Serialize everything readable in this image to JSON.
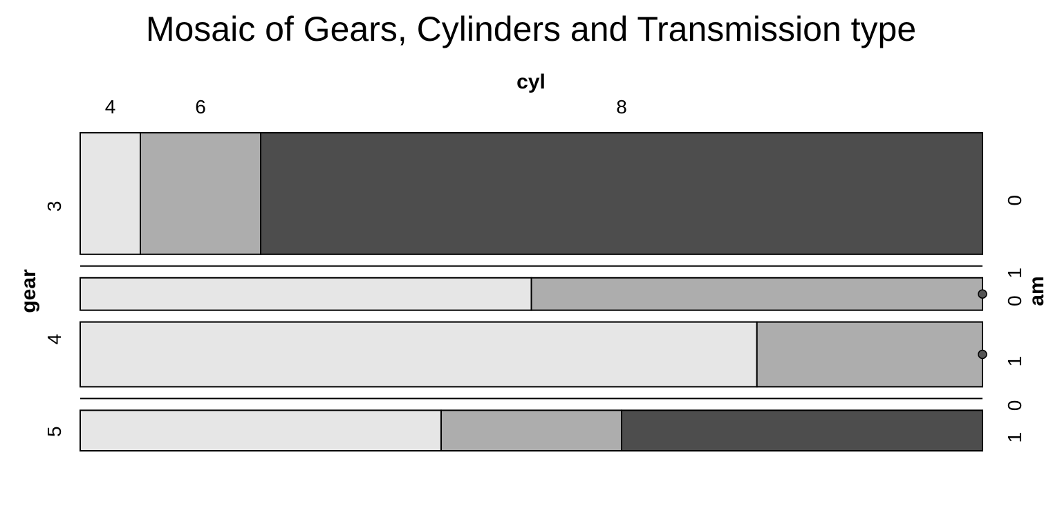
{
  "chart_data": {
    "type": "mosaic",
    "title": "Mosaic of Gears, Cylinders and Transmission type",
    "x_variable": "cyl",
    "y_variable": "gear",
    "z_variable": "am",
    "cyl_levels": [
      "4",
      "6",
      "8"
    ],
    "gear_levels": [
      "3",
      "4",
      "5"
    ],
    "am_levels": [
      "0",
      "1"
    ],
    "fill_colors": {
      "4": "#e6e6e6",
      "6": "#adadad",
      "8": "#4d4d4d"
    },
    "counts": [
      {
        "gear": "3",
        "am": "0",
        "cyl": {
          "4": 1,
          "6": 2,
          "8": 12
        }
      },
      {
        "gear": "3",
        "am": "1",
        "cyl": {
          "4": 0,
          "6": 0,
          "8": 0
        }
      },
      {
        "gear": "4",
        "am": "0",
        "cyl": {
          "4": 2,
          "6": 2,
          "8": 0
        }
      },
      {
        "gear": "4",
        "am": "1",
        "cyl": {
          "4": 6,
          "6": 2,
          "8": 0
        }
      },
      {
        "gear": "5",
        "am": "0",
        "cyl": {
          "4": 0,
          "6": 0,
          "8": 0
        }
      },
      {
        "gear": "5",
        "am": "1",
        "cyl": {
          "4": 2,
          "6": 1,
          "8": 2
        }
      }
    ]
  }
}
